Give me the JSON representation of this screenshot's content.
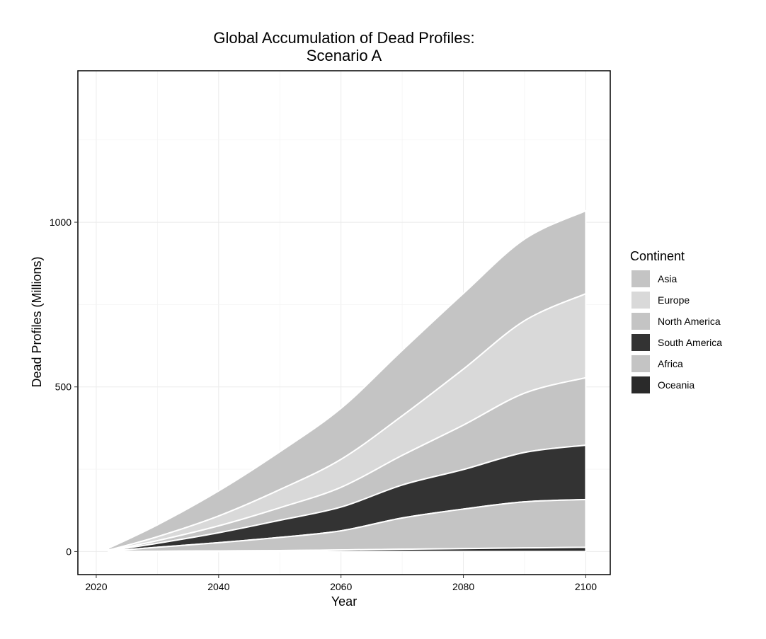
{
  "chart_data": {
    "type": "area",
    "stacked": true,
    "title_lines": [
      "Global Accumulation of Dead Profiles:",
      "Scenario A"
    ],
    "xlabel": "Year",
    "ylabel": "Dead Profiles (Millions)",
    "xlim": [
      2017,
      2104
    ],
    "ylim": [
      -70,
      1460
    ],
    "x_ticks": [
      2020,
      2040,
      2060,
      2080,
      2100
    ],
    "y_ticks": [
      0,
      500,
      1000
    ],
    "grid": true,
    "legend_title": "Continent",
    "legend_position": "right",
    "x": [
      2022,
      2030,
      2040,
      2050,
      2060,
      2070,
      2080,
      2090,
      2100
    ],
    "series": [
      {
        "name": "Asia",
        "color": "#c4c4c4",
        "values": [
          6,
          36,
          76,
          115,
          155,
          199,
          230,
          248,
          252
        ]
      },
      {
        "name": "Europe",
        "color": "#d9d9d9",
        "values": [
          1,
          12,
          30,
          55,
          85,
          120,
          170,
          220,
          255
        ]
      },
      {
        "name": "North America",
        "color": "#c4c4c4",
        "values": [
          1,
          8,
          21,
          38,
          60,
          90,
          135,
          180,
          205
        ]
      },
      {
        "name": "South America",
        "color": "#333333",
        "values": [
          1,
          12,
          30,
          52,
          72,
          100,
          120,
          150,
          165
        ]
      },
      {
        "name": "Africa",
        "color": "#c4c4c4",
        "values": [
          1,
          12,
          25,
          40,
          58,
          95,
          120,
          140,
          145
        ]
      },
      {
        "name": "Oceania",
        "color": "#2a2a2a",
        "values": [
          0,
          1,
          2,
          3,
          5,
          7,
          9,
          11,
          13
        ]
      }
    ]
  }
}
